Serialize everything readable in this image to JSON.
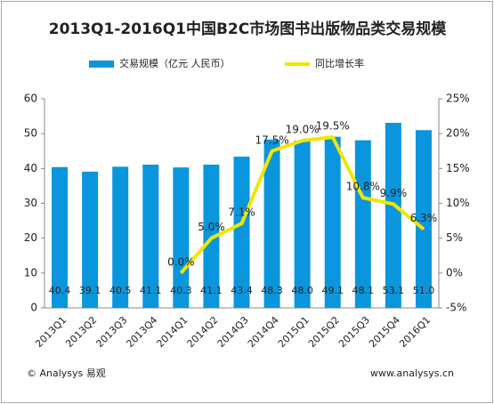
{
  "chart_data": {
    "type": "bar",
    "title": "2013Q1-2016Q1中国B2C市场图书出版物品类交易规模",
    "categories": [
      "2013Q1",
      "2013Q2",
      "2013Q3",
      "2013Q4",
      "2014Q1",
      "2014Q2",
      "2014Q3",
      "2014Q4",
      "2015Q1",
      "2015Q2",
      "2015Q3",
      "2015Q4",
      "2016Q1"
    ],
    "series": [
      {
        "name": "交易规模（亿元 人民币）",
        "color": "#0a96dc",
        "type": "bar",
        "values": [
          40.4,
          39.1,
          40.5,
          41.1,
          40.3,
          41.1,
          43.4,
          48.3,
          48.0,
          49.1,
          48.1,
          53.1,
          51.0
        ],
        "value_labels": [
          "40.4",
          "39.1",
          "40.5",
          "41.1",
          "40.3",
          "41.1",
          "43.4",
          "48.3",
          "48.0",
          "49.1",
          "48.1",
          "53.1",
          "51.0"
        ]
      },
      {
        "name": "同比增长率",
        "color": "#f2e600",
        "type": "line",
        "axis": "y2",
        "values": [
          null,
          null,
          null,
          null,
          0.0,
          5.0,
          7.1,
          17.5,
          19.0,
          19.5,
          10.8,
          9.9,
          6.3
        ],
        "value_labels": [
          null,
          null,
          null,
          null,
          "0.0%",
          "5.0%",
          "7.1%",
          "17.5%",
          "19.0%",
          "19.5%",
          "10.8%",
          "9.9%",
          "6.3%"
        ]
      }
    ],
    "ylim": [
      0,
      60
    ],
    "yticks": [
      0,
      10,
      20,
      30,
      40,
      50,
      60
    ],
    "y2lim": [
      -5,
      25
    ],
    "y2ticks": [
      {
        "value": -5,
        "label": "-5%"
      },
      {
        "value": 0,
        "label": "0%"
      },
      {
        "value": 5,
        "label": "5%"
      },
      {
        "value": 10,
        "label": "10%"
      },
      {
        "value": 15,
        "label": "15%"
      },
      {
        "value": 20,
        "label": "20%"
      },
      {
        "value": 25,
        "label": "25%"
      }
    ],
    "footer_left": "© Analysys 易观",
    "footer_right": "www.analysys.cn"
  }
}
